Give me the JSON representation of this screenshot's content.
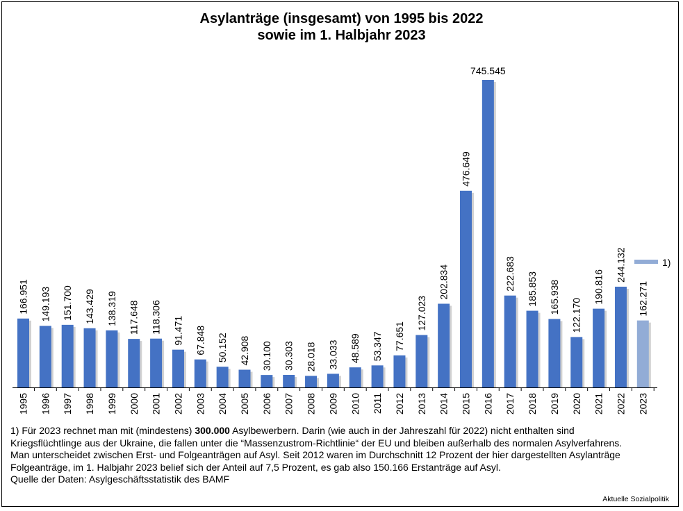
{
  "chart_data": {
    "type": "bar",
    "title_line1": "Asylanträge (insgesamt) von 1995 bis 2022",
    "title_line2": "sowie im 1. Halbjahr 2023",
    "xlabel": "",
    "ylabel": "",
    "ylim": [
      0,
      760000
    ],
    "grid": false,
    "legend_position": "right",
    "legend_label": "1)",
    "colors": {
      "main": "#4472C4",
      "highlight": "#92ACD6"
    },
    "categories": [
      "1995",
      "1996",
      "1997",
      "1998",
      "1999",
      "2000",
      "2001",
      "2002",
      "2003",
      "2004",
      "2005",
      "2006",
      "2007",
      "2008",
      "2009",
      "2010",
      "2011",
      "2012",
      "2013",
      "2014",
      "2015",
      "2016",
      "2017",
      "2018",
      "2019",
      "2020",
      "2021",
      "2022",
      "2023"
    ],
    "values": [
      166951,
      149193,
      151700,
      143429,
      138319,
      117648,
      118306,
      91471,
      67848,
      50152,
      42908,
      30100,
      30303,
      28018,
      33033,
      48589,
      53347,
      77651,
      127023,
      202834,
      476649,
      745545,
      222683,
      185853,
      165938,
      122170,
      190816,
      244132,
      162271
    ],
    "labels": [
      "166.951",
      "149.193",
      "151.700",
      "143.429",
      "138.319",
      "117.648",
      "118.306",
      "91.471",
      "67.848",
      "50.152",
      "42.908",
      "30.100",
      "30.303",
      "28.018",
      "33.033",
      "48.589",
      "53.347",
      "77.651",
      "127.023",
      "202.834",
      "476.649",
      "745.545",
      "222.683",
      "185.853",
      "165.938",
      "122.170",
      "190.816",
      "244.132",
      "162.271"
    ],
    "highlight_index": 28
  },
  "notes": {
    "line1_pre": "1) Für 2023 rechnet man mit (mindestens) ",
    "line1_bold": "300.000",
    "line1_post": " Asylbewerbern. Darin (wie auch in der Jahreszahl für 2022) nicht enthalten sind Kriegsflüchtlinge aus der Ukraine, die fallen unter die “Massenzustrom-Richtlinie“ der EU und bleiben außerhalb des normalen Asylverfahrens.",
    "line2": "Man unterscheidet zwischen Erst- und Folgeanträgen auf Asyl. Seit 2012 waren im Durchschnitt 12 Prozent der hier dargestellten Asylanträge Folgeanträge, im 1. Halbjahr 2023 belief sich der Anteil auf 7,5 Prozent, es gab also 150.166 Erstanträge auf Asyl.",
    "line3": "Quelle der Daten: Asylgeschäftsstatistik des BAMF"
  },
  "brand": "Aktuelle Sozialpolitik"
}
